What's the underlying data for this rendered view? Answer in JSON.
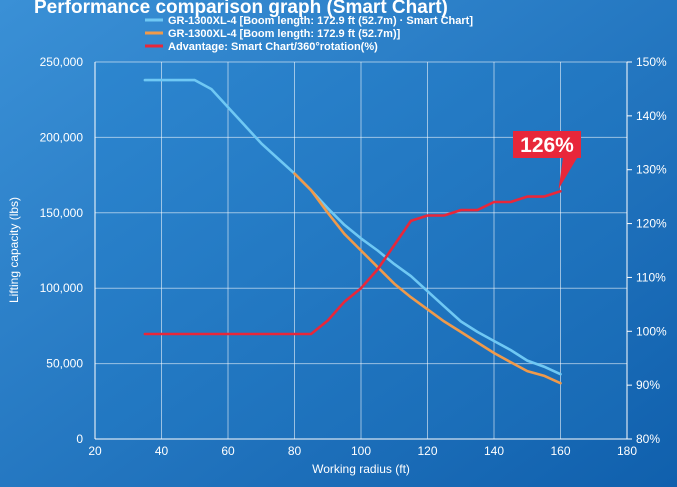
{
  "chart_data": {
    "type": "line",
    "title": "Performance comparison graph (Smart Chart)",
    "xlabel": "Working radius (ft)",
    "ylabel": "Lifting capacity (lbs)",
    "y2label": "",
    "xlim": [
      20,
      180
    ],
    "ylim": [
      0,
      250000
    ],
    "y2lim": [
      80,
      150
    ],
    "x_ticks": [
      "20",
      "40",
      "60",
      "80",
      "100",
      "120",
      "140",
      "160",
      "180"
    ],
    "y_ticks": [
      "0",
      "50,000",
      "100,000",
      "150,000",
      "200,000",
      "250,000"
    ],
    "y2_ticks": [
      "80%",
      "90%",
      "100%",
      "110%",
      "120%",
      "130%",
      "140%",
      "150%"
    ],
    "grid": true,
    "legend_position": "top",
    "series": [
      {
        "name": "GR-1300XL-4 [Boom length: 172.9 ft (52.7m) · Smart Chart]",
        "axis": "left",
        "color": "#6fc8f4",
        "x": [
          35,
          40,
          45,
          50,
          55,
          60,
          65,
          70,
          75,
          80,
          85,
          90,
          95,
          100,
          105,
          110,
          115,
          120,
          125,
          130,
          135,
          140,
          145,
          150,
          155,
          160
        ],
        "y": [
          238000,
          238000,
          238000,
          238000,
          232000,
          220000,
          208000,
          196000,
          186000,
          176000,
          165000,
          153000,
          142000,
          133000,
          125000,
          116000,
          108000,
          98000,
          88000,
          78000,
          71000,
          65000,
          59000,
          52000,
          48000,
          43000
        ]
      },
      {
        "name": "GR-1300XL-4 [Boom length: 172.9 ft (52.7m)]",
        "axis": "left",
        "color": "#f09a4a",
        "x": [
          80,
          85,
          90,
          95,
          100,
          105,
          110,
          115,
          120,
          125,
          130,
          135,
          140,
          145,
          150,
          155,
          160
        ],
        "y": [
          176000,
          165000,
          150000,
          136000,
          125000,
          114000,
          103000,
          94000,
          86000,
          78000,
          71000,
          64000,
          57000,
          51000,
          45000,
          42000,
          37000
        ]
      },
      {
        "name": "Advantage: Smart Chart/360°rotation(%)",
        "axis": "right",
        "color": "#e8273a",
        "x": [
          35,
          40,
          50,
          60,
          70,
          80,
          85,
          90,
          95,
          100,
          105,
          110,
          115,
          120,
          125,
          130,
          135,
          140,
          145,
          150,
          155,
          160
        ],
        "y": [
          99.5,
          99.5,
          99.5,
          99.5,
          99.5,
          99.5,
          99.5,
          102,
          105.5,
          108,
          111.5,
          116,
          120.5,
          121.5,
          121.5,
          122.5,
          122.5,
          124,
          124,
          125,
          125,
          126
        ]
      }
    ],
    "annotations": [
      {
        "text": "126%",
        "x": 160,
        "y": 126,
        "axis": "right",
        "color": "#e8273a"
      }
    ]
  }
}
